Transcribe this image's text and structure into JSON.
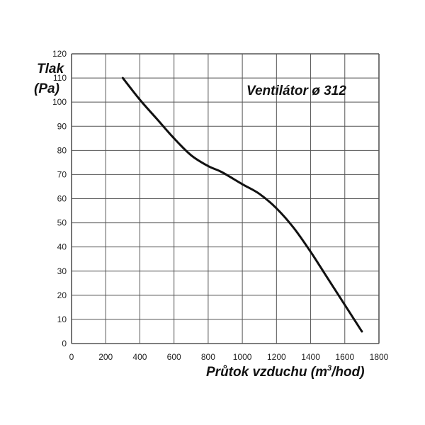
{
  "chart_data": {
    "type": "line",
    "title": "Ventilátor ø 312",
    "ylabel_line1": "Tlak",
    "ylabel_line2": "(Pa)",
    "xlabel_prefix": "Průtok vzduchu (m",
    "xlabel_sup": "3",
    "xlabel_suffix": "/hod)",
    "xlim": [
      0,
      1800
    ],
    "ylim": [
      0,
      120
    ],
    "x_ticks": [
      0,
      200,
      400,
      600,
      800,
      1000,
      1200,
      1400,
      1600,
      1800
    ],
    "y_ticks": [
      0,
      10,
      20,
      30,
      40,
      50,
      60,
      70,
      80,
      90,
      100,
      110,
      120
    ],
    "grid": true,
    "legend": "none",
    "line_color": "#111111",
    "grid_color": "#555555",
    "series": [
      {
        "x": [
          300,
          400,
          500,
          600,
          700,
          800,
          880,
          1000,
          1100,
          1200,
          1300,
          1400,
          1500,
          1600,
          1700
        ],
        "y": [
          110,
          101,
          93,
          85,
          78,
          73.5,
          71,
          66,
          62,
          56,
          48,
          38,
          27,
          16,
          5
        ]
      }
    ]
  }
}
